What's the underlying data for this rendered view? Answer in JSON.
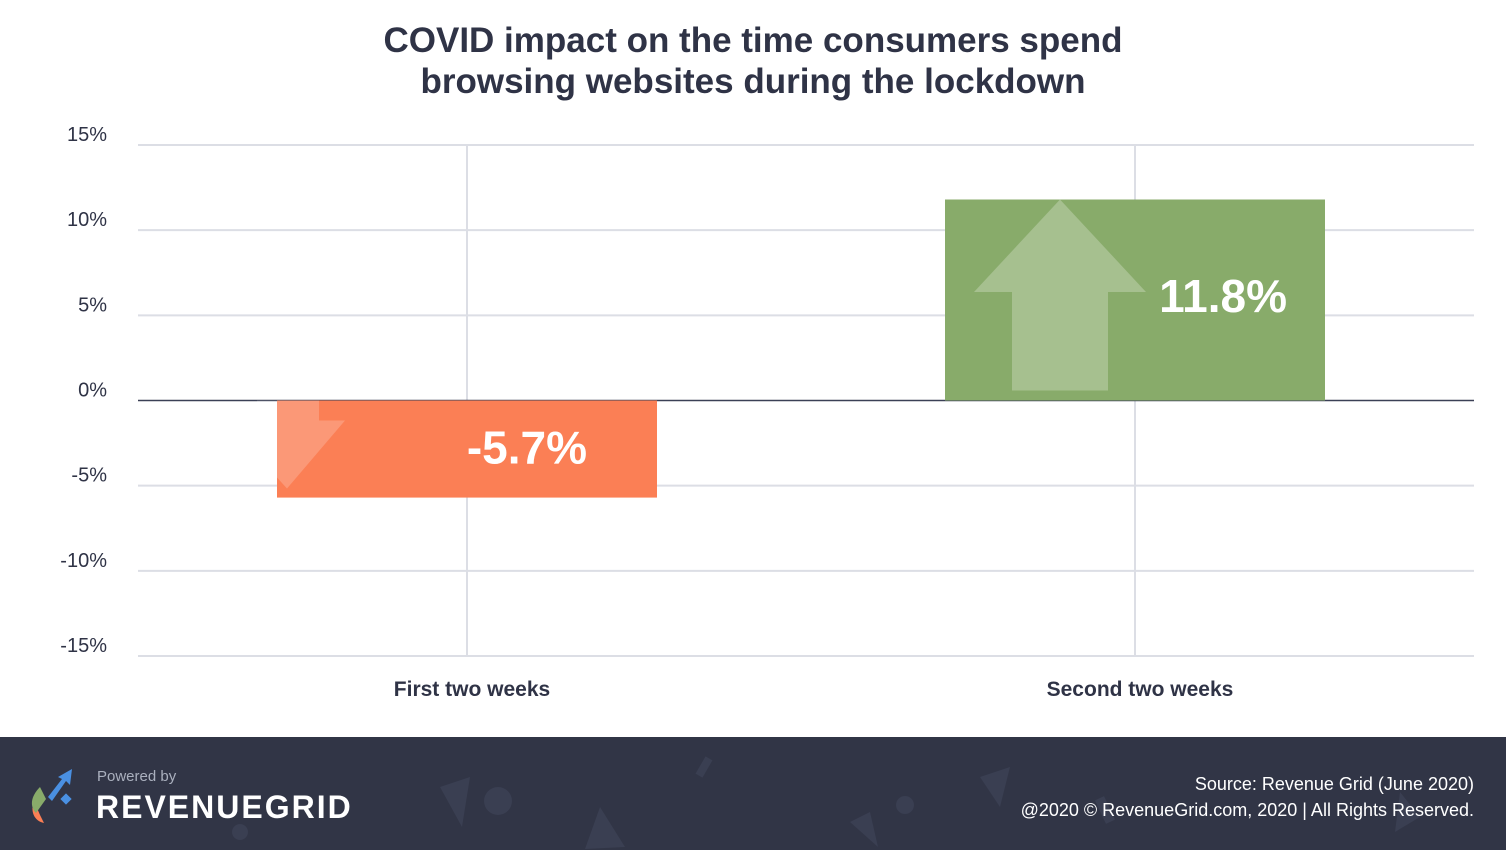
{
  "title_lines": [
    "COVID impact on the time consumers spend",
    "browsing websites during the lockdown"
  ],
  "chart_data": {
    "type": "bar",
    "title": "COVID impact on the time consumers spend browsing websites during the lockdown",
    "categories": [
      "First two weeks",
      "Second two weeks"
    ],
    "values": [
      -5.7,
      11.8
    ],
    "value_labels": [
      "-5.7%",
      "11.8%"
    ],
    "ylim": [
      -15,
      15
    ],
    "yticks": [
      15,
      10,
      5,
      0,
      -5,
      -10,
      -15
    ],
    "ytick_labels": [
      "15%",
      "10%",
      "5%",
      "0%",
      "-5%",
      "-10%",
      "-15%"
    ],
    "xlabel": "",
    "ylabel": "",
    "grid": true,
    "colors": [
      "#fb7f55",
      "#88ab6a"
    ]
  },
  "footer": {
    "powered_by": "Powered by",
    "brand": "REVENUEGRID",
    "source": "Source: Revenue Grid (June 2020)",
    "copyright": "@2020 © RevenueGrid.com, 2020 | All Rights Reserved."
  }
}
